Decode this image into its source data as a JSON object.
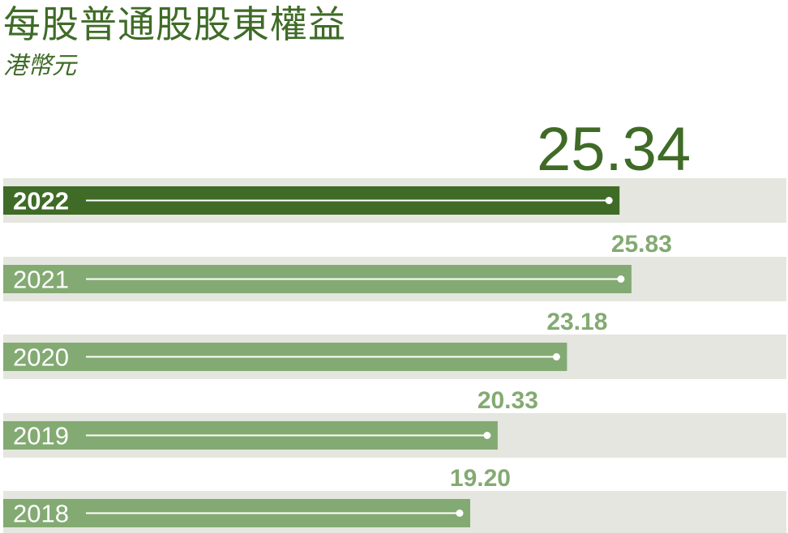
{
  "header": {
    "title": "每股普通股股東權益",
    "subtitle": "港幣元"
  },
  "colors": {
    "highlight": "#3f6b27",
    "bar": "#83aa72",
    "value_label": "#83aa72",
    "track": "#e4e6df"
  },
  "chart_data": {
    "type": "bar",
    "orientation": "horizontal",
    "title": "每股普通股股東權益",
    "subtitle": "港幣元",
    "categories": [
      "2022",
      "2021",
      "2020",
      "2019",
      "2018"
    ],
    "values": [
      25.34,
      25.83,
      23.18,
      20.33,
      19.2
    ],
    "value_labels": [
      "25.34",
      "25.83",
      "23.18",
      "20.33",
      "19.20"
    ],
    "highlight_category": "2022",
    "xlim": [
      0,
      31.0
    ],
    "grid": false,
    "legend": "none"
  }
}
